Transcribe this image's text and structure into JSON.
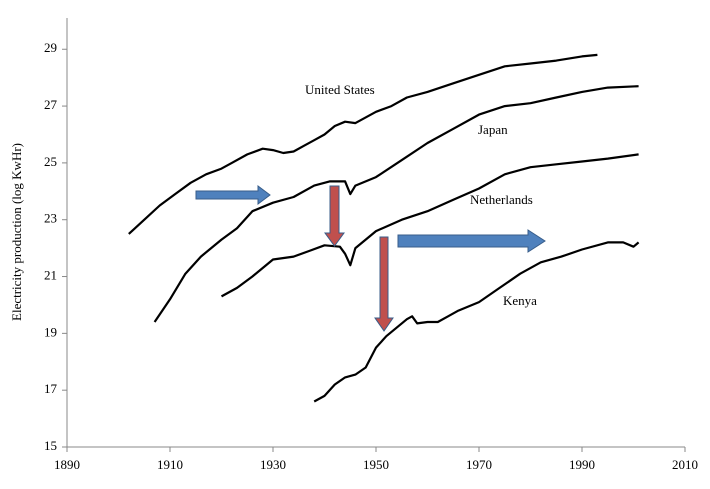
{
  "chart_data": {
    "type": "line",
    "y_label": "Electricity production (log KwHr)",
    "xlim": [
      1890,
      2010
    ],
    "xticks": [
      1890,
      1910,
      1930,
      1950,
      1970,
      1990,
      2010
    ],
    "ylim": [
      15,
      30.1
    ],
    "yticks": [
      15,
      17,
      19,
      21,
      23,
      25,
      27,
      29
    ],
    "grid": false,
    "series": [
      {
        "name": "United States",
        "color": "#000000",
        "x": [
          1902,
          1905,
          1908,
          1911,
          1914,
          1917,
          1920,
          1922,
          1925,
          1928,
          1930,
          1932,
          1934,
          1936,
          1938,
          1940,
          1942,
          1944,
          1946,
          1948,
          1950,
          1953,
          1956,
          1960,
          1965,
          1970,
          1975,
          1980,
          1985,
          1990,
          1993
        ],
        "values": [
          22.5,
          23.0,
          23.5,
          23.9,
          24.3,
          24.6,
          24.8,
          25.0,
          25.3,
          25.5,
          25.45,
          25.35,
          25.4,
          25.6,
          25.8,
          26.0,
          26.3,
          26.45,
          26.4,
          26.6,
          26.8,
          27.0,
          27.3,
          27.5,
          27.8,
          28.1,
          28.4,
          28.5,
          28.6,
          28.75,
          28.8
        ]
      },
      {
        "name": "Japan",
        "color": "#000000",
        "x": [
          1907,
          1910,
          1913,
          1916,
          1920,
          1923,
          1926,
          1930,
          1934,
          1938,
          1941,
          1944,
          1945,
          1946,
          1950,
          1955,
          1960,
          1965,
          1970,
          1975,
          1980,
          1985,
          1990,
          1995,
          2001
        ],
        "values": [
          19.4,
          20.2,
          21.1,
          21.7,
          22.3,
          22.7,
          23.3,
          23.6,
          23.8,
          24.2,
          24.35,
          24.35,
          23.9,
          24.2,
          24.5,
          25.1,
          25.7,
          26.2,
          26.7,
          27.0,
          27.1,
          27.3,
          27.5,
          27.65,
          27.7
        ]
      },
      {
        "name": "Netherlands",
        "color": "#000000",
        "x": [
          1920,
          1923,
          1926,
          1930,
          1934,
          1937,
          1940,
          1943,
          1944,
          1945,
          1946,
          1950,
          1955,
          1960,
          1965,
          1970,
          1975,
          1980,
          1985,
          1990,
          1995,
          2001
        ],
        "values": [
          20.3,
          20.6,
          21.0,
          21.6,
          21.7,
          21.9,
          22.1,
          22.05,
          21.8,
          21.4,
          22.0,
          22.6,
          23.0,
          23.3,
          23.7,
          24.1,
          24.6,
          24.85,
          24.95,
          25.05,
          25.15,
          25.3
        ]
      },
      {
        "name": "Kenya",
        "color": "#000000",
        "x": [
          1938,
          1940,
          1942,
          1944,
          1946,
          1948,
          1950,
          1952,
          1954,
          1956,
          1957,
          1958,
          1960,
          1962,
          1964,
          1966,
          1970,
          1974,
          1978,
          1982,
          1986,
          1990,
          1995,
          1998,
          2000,
          2001
        ],
        "values": [
          16.6,
          16.8,
          17.2,
          17.45,
          17.55,
          17.8,
          18.5,
          18.9,
          19.2,
          19.5,
          19.6,
          19.35,
          19.4,
          19.4,
          19.6,
          19.8,
          20.1,
          20.6,
          21.1,
          21.5,
          21.7,
          21.95,
          22.2,
          22.2,
          22.05,
          22.2
        ]
      }
    ]
  }
}
